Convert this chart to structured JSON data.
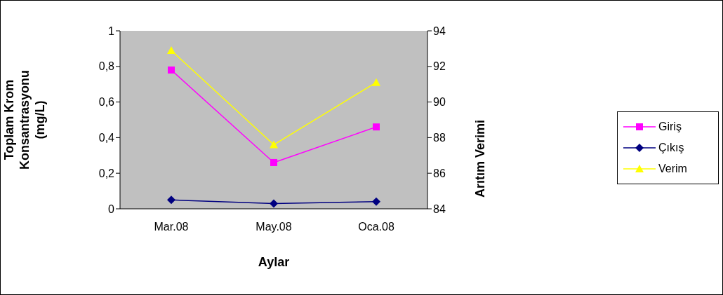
{
  "chart_data": {
    "type": "line",
    "xlabel": "Aylar",
    "ylabel": "Toplam Krom Konsantrasyonu (mg/L)",
    "y2label": "Arıtım Verimi",
    "categories": [
      "Mar.08",
      "May.08",
      "Oca.08"
    ],
    "series": [
      {
        "name": "Giriş",
        "color": "#ff00ff",
        "marker": "square",
        "values": [
          0.78,
          0.26,
          0.46
        ]
      },
      {
        "name": "Çıkış",
        "color": "#000080",
        "marker": "diamond",
        "values": [
          0.05,
          0.03,
          0.04
        ]
      },
      {
        "name": "Verim",
        "color": "#ffff00",
        "marker": "triangle",
        "axis": "y2",
        "values": [
          92.9,
          87.6,
          91.1
        ]
      }
    ],
    "ylim": [
      0,
      1
    ],
    "yticks": [
      {
        "value": 0,
        "label": "0"
      },
      {
        "value": 0.2,
        "label": "0,2"
      },
      {
        "value": 0.4,
        "label": "0,4"
      },
      {
        "value": 0.6,
        "label": "0,6"
      },
      {
        "value": 0.8,
        "label": "0,8"
      },
      {
        "value": 1,
        "label": "1"
      }
    ],
    "y2lim": [
      84,
      94
    ],
    "y2ticks": [
      84,
      86,
      88,
      90,
      92,
      94
    ],
    "grid": false,
    "legend": "right"
  }
}
